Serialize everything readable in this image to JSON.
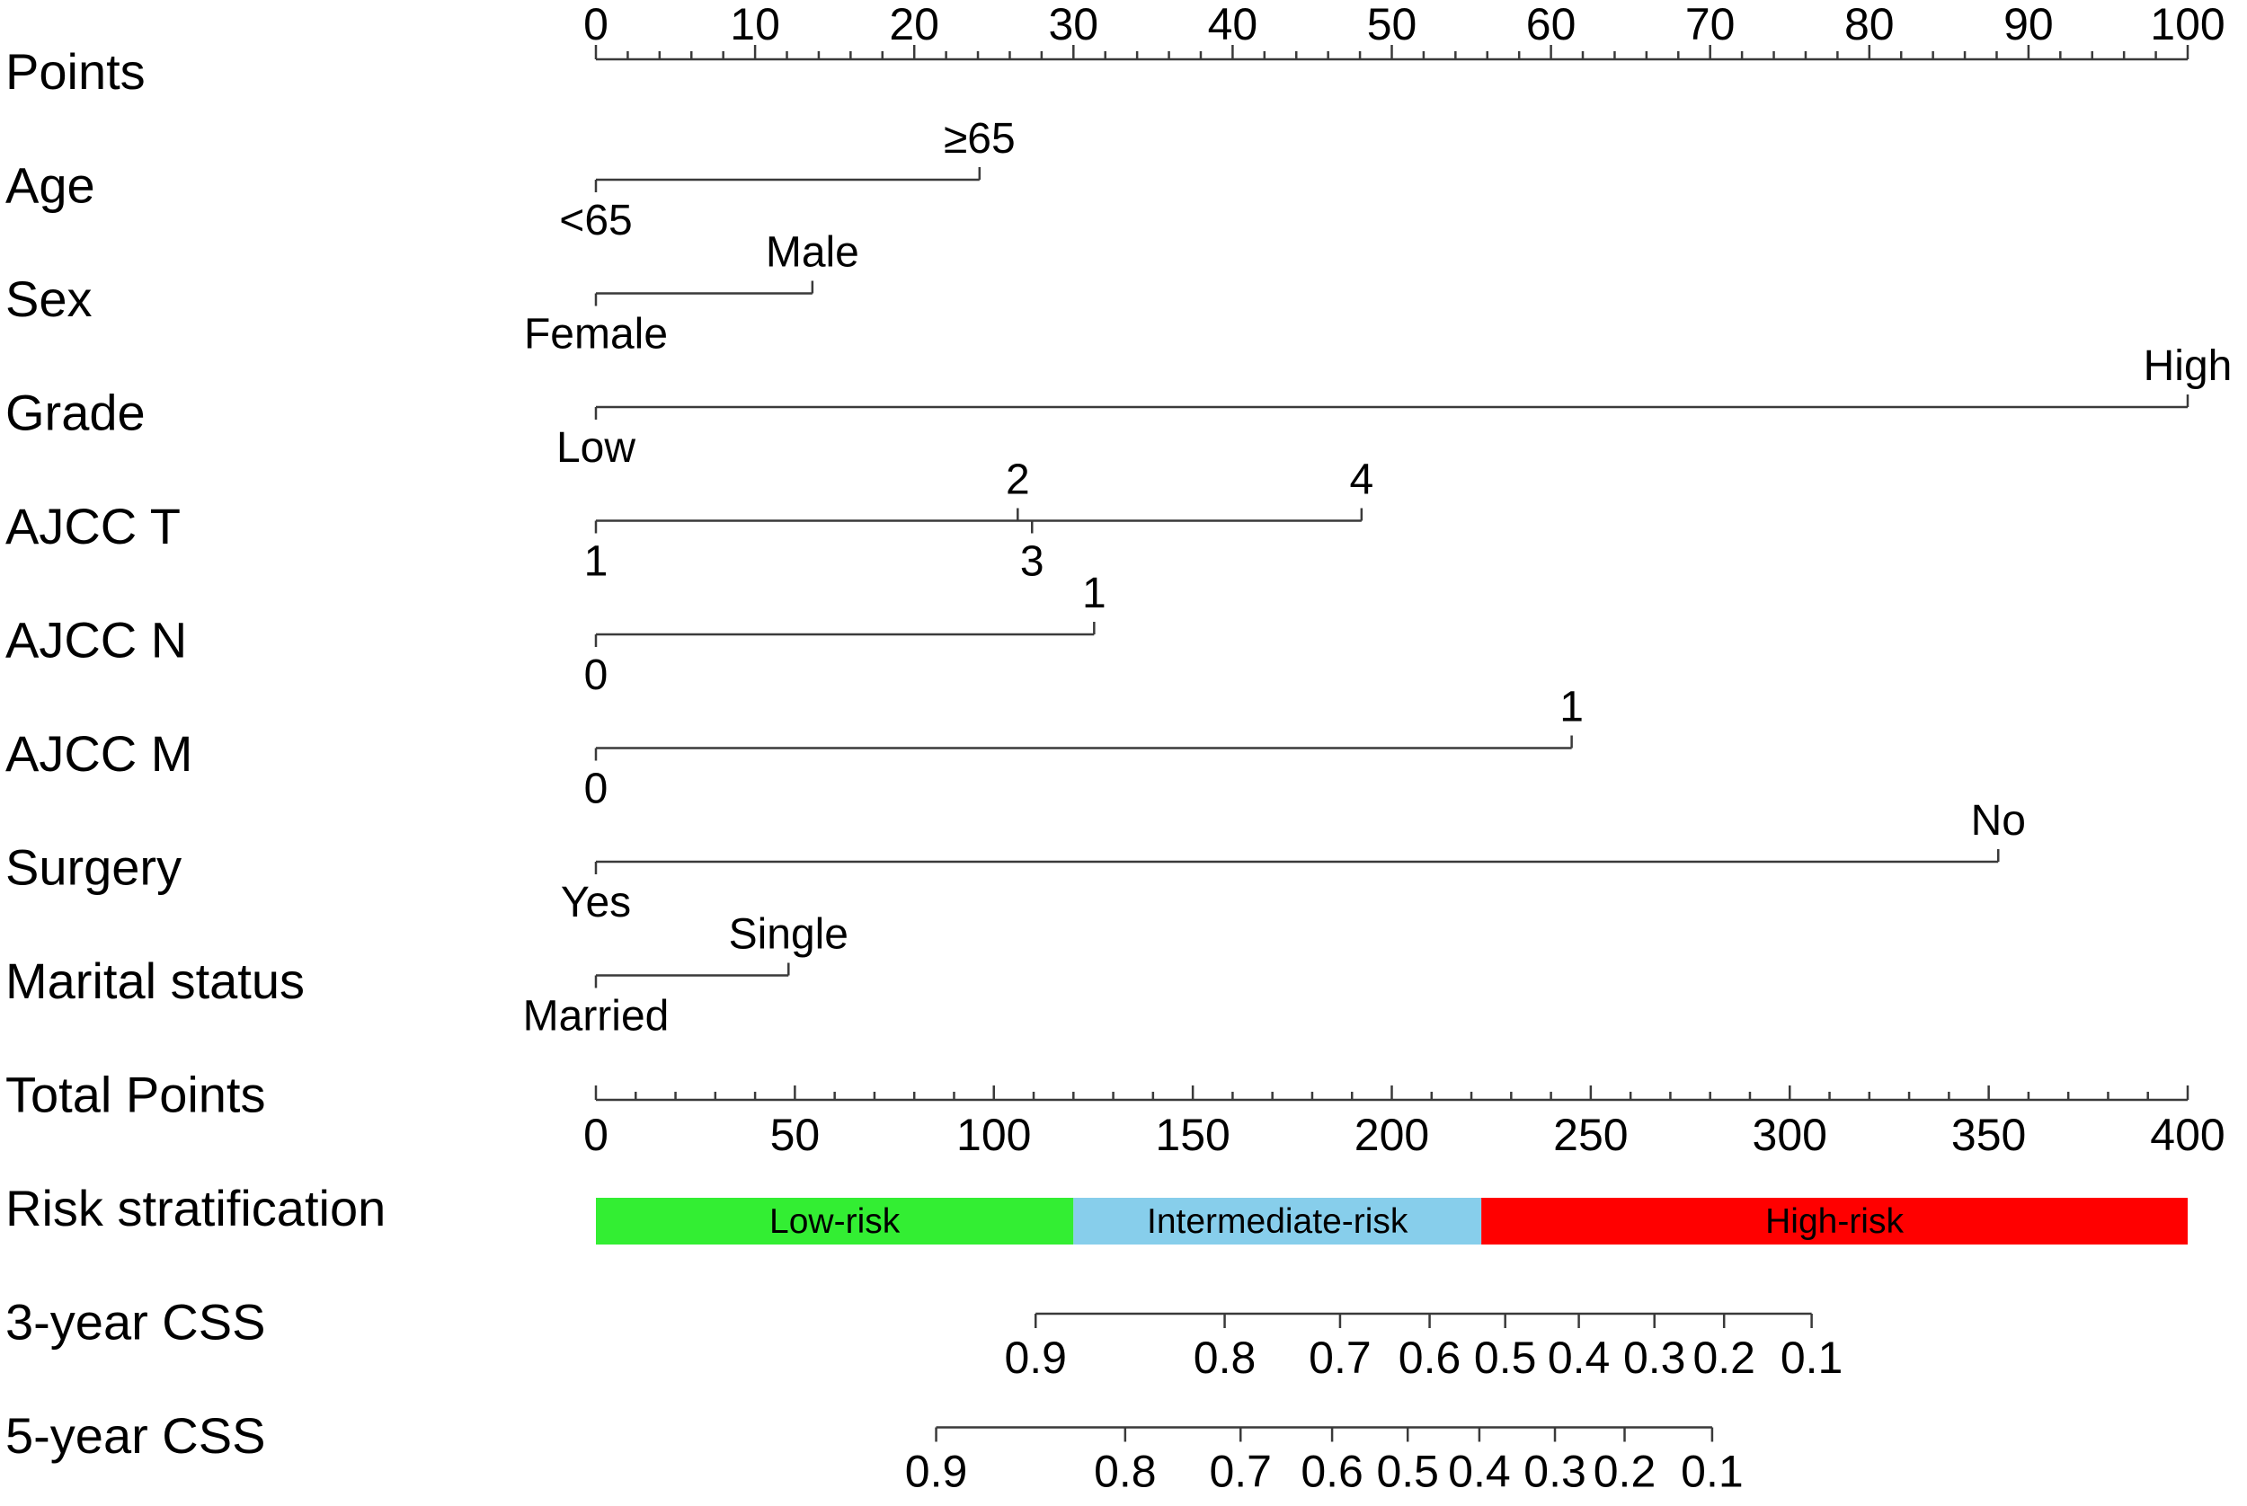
{
  "chart_data": {
    "type": "nomogram",
    "points_scale": {
      "label": "Points",
      "min": 0,
      "max": 100,
      "major_ticks": [
        0,
        10,
        20,
        30,
        40,
        50,
        60,
        70,
        80,
        90,
        100
      ],
      "tick_labels": [
        "0",
        "10",
        "20",
        "30",
        "40",
        "50",
        "60",
        "70",
        "80",
        "90",
        "100"
      ],
      "minor_step": 2
    },
    "variables": [
      {
        "label": "Age",
        "levels": [
          {
            "name": "<65",
            "points": 0,
            "side": "below"
          },
          {
            "name": "≥65",
            "points": 24.1,
            "side": "above"
          }
        ]
      },
      {
        "label": "Sex",
        "levels": [
          {
            "name": "Female",
            "points": 0,
            "side": "below"
          },
          {
            "name": "Male",
            "points": 13.6,
            "side": "above"
          }
        ]
      },
      {
        "label": "Grade",
        "levels": [
          {
            "name": "Low",
            "points": 0,
            "side": "below"
          },
          {
            "name": "High",
            "points": 100,
            "side": "above"
          }
        ]
      },
      {
        "label": "AJCC T",
        "levels": [
          {
            "name": "1",
            "points": 0,
            "side": "below"
          },
          {
            "name": "2",
            "points": 26.5,
            "side": "above"
          },
          {
            "name": "3",
            "points": 27.4,
            "side": "below"
          },
          {
            "name": "4",
            "points": 48.1,
            "side": "above"
          }
        ]
      },
      {
        "label": "AJCC N",
        "levels": [
          {
            "name": "0",
            "points": 0,
            "side": "below"
          },
          {
            "name": "1",
            "points": 31.3,
            "side": "above"
          }
        ]
      },
      {
        "label": "AJCC M",
        "levels": [
          {
            "name": "0",
            "points": 0,
            "side": "below"
          },
          {
            "name": "1",
            "points": 61.3,
            "side": "above"
          }
        ]
      },
      {
        "label": "Surgery",
        "levels": [
          {
            "name": "Yes",
            "points": 0,
            "side": "below"
          },
          {
            "name": "No",
            "points": 88.1,
            "side": "above"
          }
        ]
      },
      {
        "label": "Marital status",
        "levels": [
          {
            "name": "Married",
            "points": 0,
            "side": "below"
          },
          {
            "name": "Single",
            "points": 12.1,
            "side": "above"
          }
        ]
      }
    ],
    "total_points_scale": {
      "label": "Total Points",
      "min": 0,
      "max": 400,
      "major_ticks": [
        0,
        50,
        100,
        150,
        200,
        250,
        300,
        350,
        400
      ],
      "tick_labels": [
        "0",
        "50",
        "100",
        "150",
        "200",
        "250",
        "300",
        "350",
        "400"
      ],
      "minor_step": 10
    },
    "risk_stratification": {
      "label": "Risk stratification",
      "bands": [
        {
          "name": "Low-risk",
          "from": 0,
          "to": 120,
          "color": "#33ee33"
        },
        {
          "name": "Intermediate-risk",
          "from": 120,
          "to": 222.5,
          "color": "#87ceeb"
        },
        {
          "name": "High-risk",
          "from": 222.5,
          "to": 400,
          "color": "#ff0000"
        }
      ]
    },
    "survival_scales": [
      {
        "label": "3-year CSS",
        "ticks": [
          {
            "value": 0.9,
            "total_points": 110.5
          },
          {
            "value": 0.8,
            "total_points": 158
          },
          {
            "value": 0.7,
            "total_points": 187
          },
          {
            "value": 0.6,
            "total_points": 209.5
          },
          {
            "value": 0.5,
            "total_points": 228.5
          },
          {
            "value": 0.4,
            "total_points": 247
          },
          {
            "value": 0.3,
            "total_points": 266
          },
          {
            "value": 0.2,
            "total_points": 283.5
          },
          {
            "value": 0.1,
            "total_points": 305.5
          }
        ]
      },
      {
        "label": "5-year CSS",
        "ticks": [
          {
            "value": 0.9,
            "total_points": 85.5
          },
          {
            "value": 0.8,
            "total_points": 133
          },
          {
            "value": 0.7,
            "total_points": 162
          },
          {
            "value": 0.6,
            "total_points": 185
          },
          {
            "value": 0.5,
            "total_points": 204
          },
          {
            "value": 0.4,
            "total_points": 222
          },
          {
            "value": 0.3,
            "total_points": 241
          },
          {
            "value": 0.2,
            "total_points": 258.5
          },
          {
            "value": 0.1,
            "total_points": 280.5
          }
        ]
      }
    ],
    "survival_tick_labels": [
      "0.9",
      "0.8",
      "0.7",
      "0.6",
      "0.5",
      "0.4",
      "0.3",
      "0.2",
      "0.1"
    ]
  }
}
